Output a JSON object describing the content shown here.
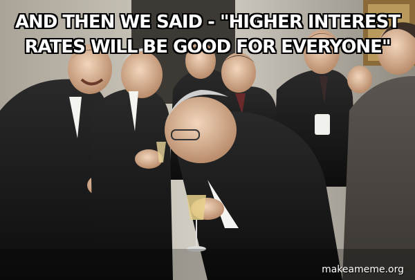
{
  "meme": {
    "caption_line1": "AND THEN WE SAID - \"HIGHER INTEREST",
    "caption_line2": "RATES WILL BE GOOD FOR EVERYONE\"",
    "watermark": "makeameme.org"
  },
  "palette": {
    "suit_dark": "#1a1a1a",
    "wall": "#c9c4b8",
    "skin": "#d9b89a",
    "hair": "#c8c8c8"
  }
}
